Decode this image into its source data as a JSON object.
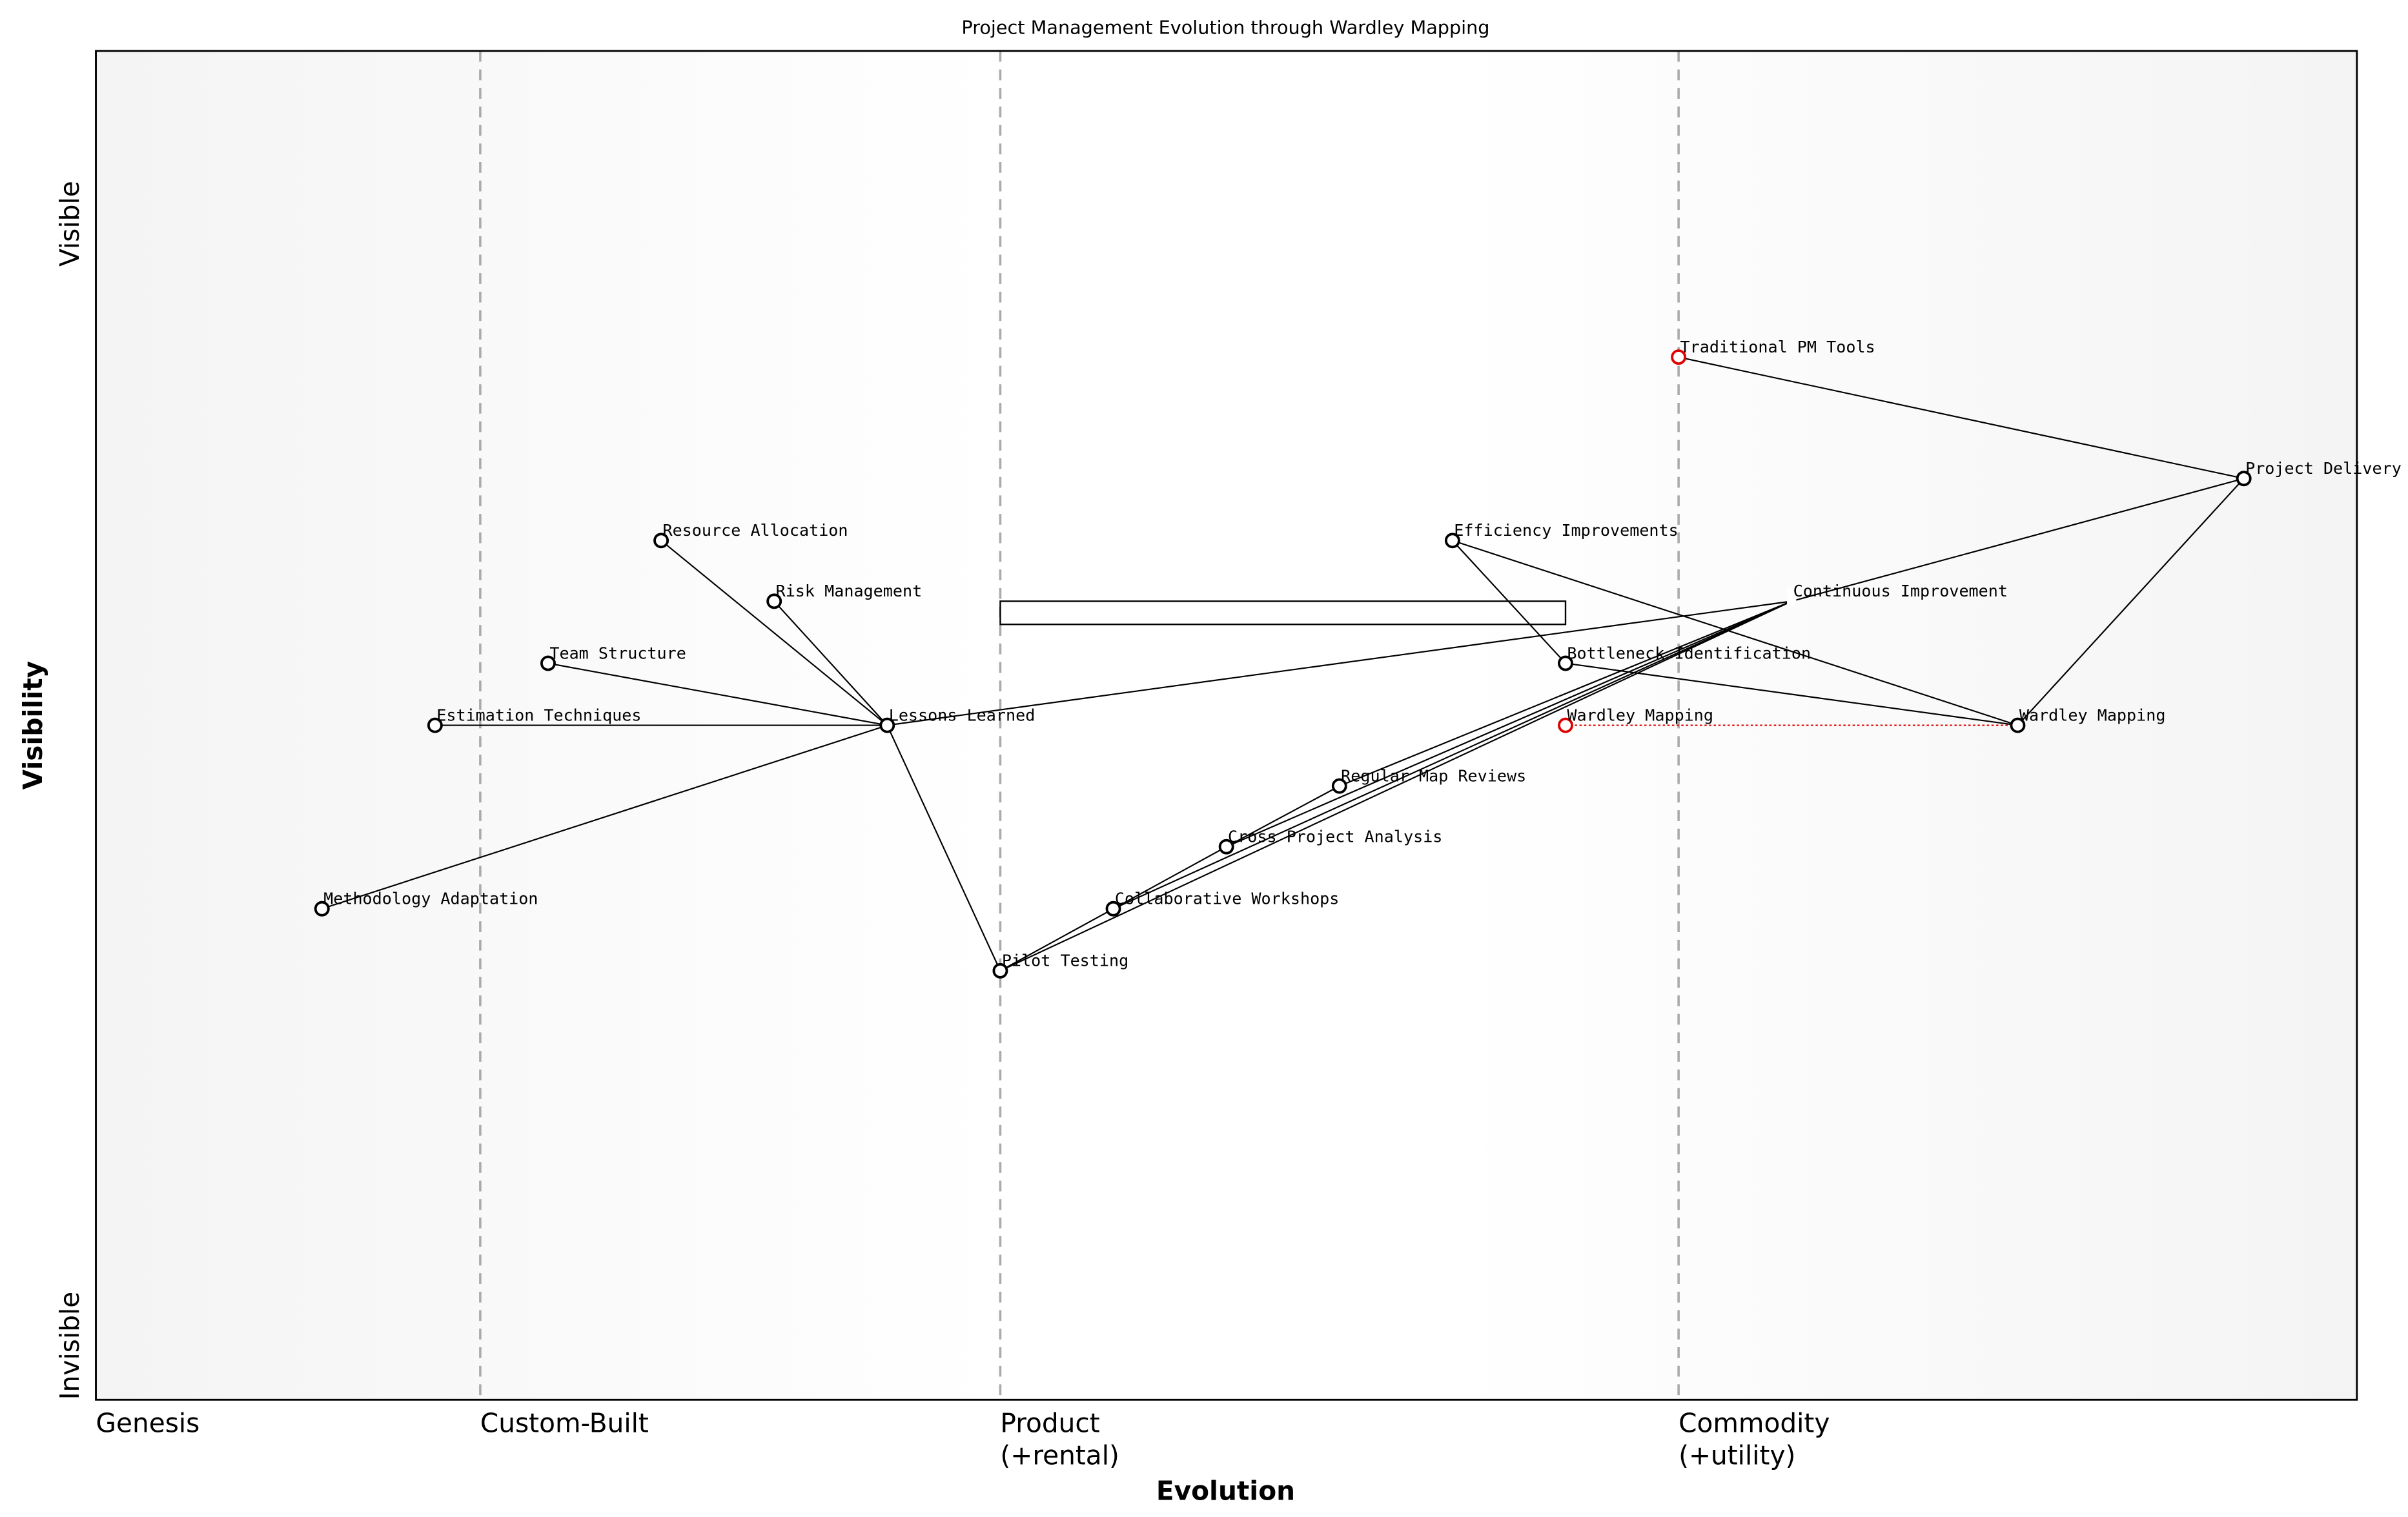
{
  "title": "Project Management Evolution through Wardley Mapping",
  "xlabel": "Evolution",
  "ylabel": "Visibility",
  "y_top_label": "Visible",
  "y_bottom_label": "Invisible",
  "stages": [
    {
      "label": "Genesis",
      "at": 0.0
    },
    {
      "label": "Custom-Built",
      "at": 0.17
    },
    {
      "label": "Product\n(+rental)",
      "at": 0.4
    },
    {
      "label": "Commodity\n(+utility)",
      "at": 0.7
    }
  ],
  "colors": {
    "node": "#000000",
    "highlight": "#e00000",
    "divider": "#aaaaaa",
    "background_edge": "#f4f4f4"
  },
  "components": [
    {
      "id": "tpm",
      "name": "Traditional PM Tools",
      "evolution": 0.7,
      "visibility": 0.773,
      "color": "red"
    },
    {
      "id": "pd",
      "name": "Project Delivery",
      "evolution": 0.95,
      "visibility": 0.683
    },
    {
      "id": "ra",
      "name": "Resource Allocation",
      "evolution": 0.25,
      "visibility": 0.637
    },
    {
      "id": "ei",
      "name": "Efficiency Improvements",
      "evolution": 0.6,
      "visibility": 0.637
    },
    {
      "id": "rm",
      "name": "Risk Management",
      "evolution": 0.3,
      "visibility": 0.592
    },
    {
      "id": "ci",
      "name": "Continuous Improvement",
      "evolution": 0.75,
      "visibility": 0.592,
      "hidden_marker": true
    },
    {
      "id": "ts",
      "name": "Team Structure",
      "evolution": 0.2,
      "visibility": 0.546
    },
    {
      "id": "bi",
      "name": "Bottleneck Identification",
      "evolution": 0.65,
      "visibility": 0.546
    },
    {
      "id": "et",
      "name": "Estimation Techniques",
      "evolution": 0.15,
      "visibility": 0.5
    },
    {
      "id": "ll",
      "name": "Lessons Learned",
      "evolution": 0.35,
      "visibility": 0.5
    },
    {
      "id": "wm0",
      "name": "Wardley Mapping",
      "evolution": 0.65,
      "visibility": 0.5,
      "color": "red"
    },
    {
      "id": "wm",
      "name": "Wardley Mapping",
      "evolution": 0.85,
      "visibility": 0.5
    },
    {
      "id": "rmr",
      "name": "Regular Map Reviews",
      "evolution": 0.55,
      "visibility": 0.455
    },
    {
      "id": "cpa",
      "name": "Cross Project Analysis",
      "evolution": 0.5,
      "visibility": 0.41
    },
    {
      "id": "cw",
      "name": "Collaborative Workshops",
      "evolution": 0.45,
      "visibility": 0.364
    },
    {
      "id": "pt",
      "name": "Pilot Testing",
      "evolution": 0.4,
      "visibility": 0.318
    },
    {
      "id": "ma",
      "name": "Methodology Adaptation",
      "evolution": 0.1,
      "visibility": 0.364
    }
  ],
  "links": [
    [
      "tpm",
      "pd"
    ],
    [
      "ci",
      "pd"
    ],
    [
      "pd",
      "wm"
    ],
    [
      "ei",
      "wm"
    ],
    [
      "ei",
      "bi"
    ],
    [
      "bi",
      "wm"
    ],
    [
      "ra",
      "ll"
    ],
    [
      "rm",
      "ll"
    ],
    [
      "ts",
      "ll"
    ],
    [
      "et",
      "ll"
    ],
    [
      "ma",
      "ll"
    ],
    [
      "ll",
      "ci"
    ],
    [
      "ll",
      "pt"
    ],
    [
      "pt",
      "ci"
    ],
    [
      "cw",
      "ci"
    ],
    [
      "cpa",
      "ci"
    ],
    [
      "rmr",
      "ci"
    ],
    [
      "pt",
      "cw"
    ],
    [
      "cw",
      "cpa"
    ],
    [
      "cpa",
      "rmr"
    ]
  ],
  "evolve_links": [
    [
      "wm0",
      "wm"
    ]
  ],
  "pipelines": [
    {
      "start": 0.4,
      "end": 0.65,
      "visibility": 0.592
    }
  ]
}
